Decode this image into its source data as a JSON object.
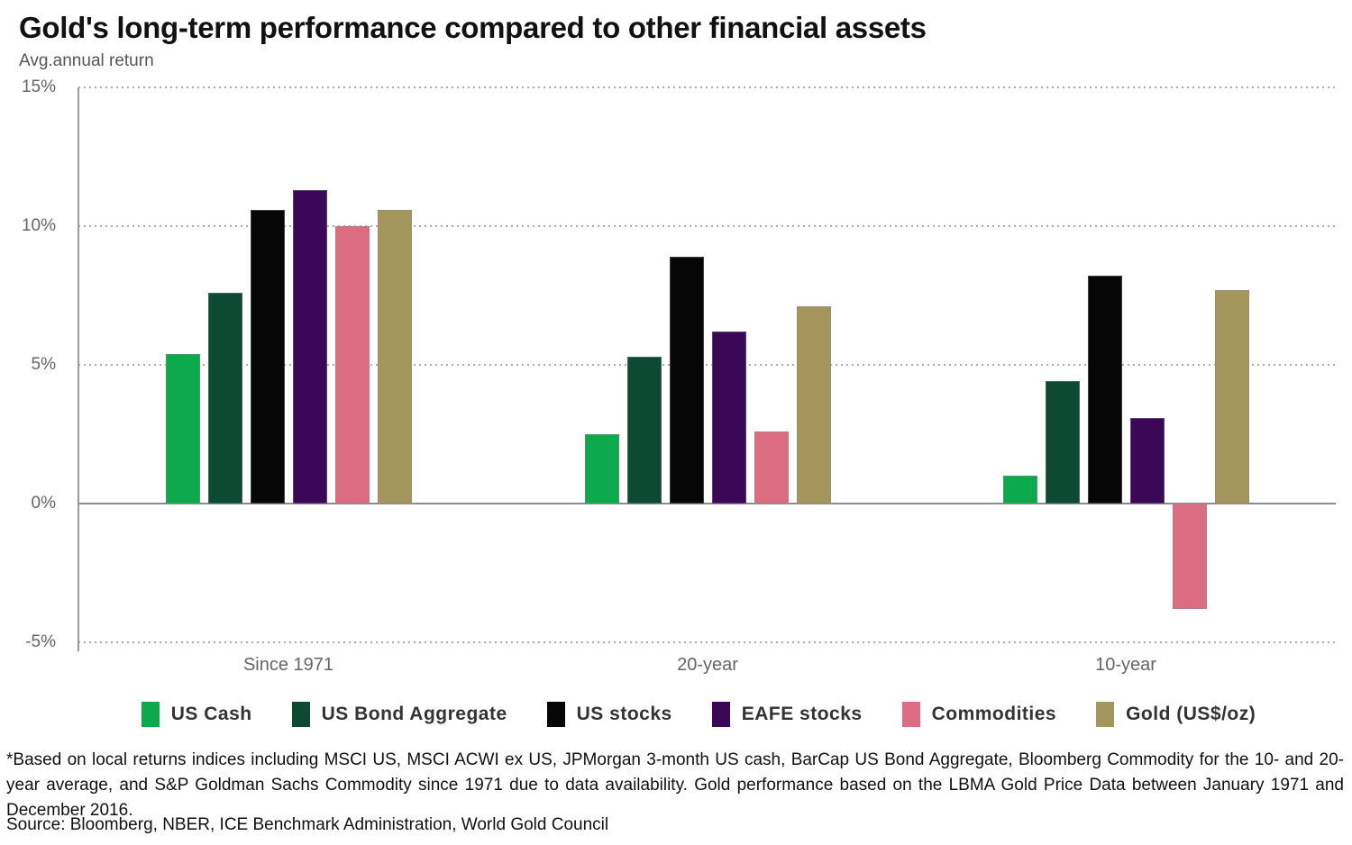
{
  "header": {
    "title": "Gold's long-term performance compared to other financial assets",
    "subtitle": "Avg.annual return"
  },
  "chart_data": {
    "type": "bar",
    "title": "Gold's long-term performance compared to other financial assets",
    "ylabel": "Avg.annual return",
    "categories": [
      "Since 1971",
      "20-year",
      "10-year"
    ],
    "series": [
      {
        "name": "US Cash",
        "color": "#0caa4c",
        "values": [
          5.4,
          2.5,
          1.0
        ]
      },
      {
        "name": "US Bond Aggregate",
        "color": "#0d4a33",
        "values": [
          7.6,
          5.3,
          4.4
        ]
      },
      {
        "name": "US stocks",
        "color": "#060606",
        "values": [
          10.6,
          8.9,
          8.2
        ]
      },
      {
        "name": "EAFE stocks",
        "color": "#3b0757",
        "values": [
          11.3,
          6.2,
          3.1
        ]
      },
      {
        "name": "Commodities",
        "color": "#db6c82",
        "values": [
          10.0,
          2.6,
          -3.8
        ]
      },
      {
        "name": "Gold (US$/oz)",
        "color": "#a4955c",
        "values": [
          10.6,
          7.1,
          7.7
        ]
      }
    ],
    "ylim": [
      -5,
      15
    ],
    "yticks": [
      {
        "value": 15,
        "label": "15%"
      },
      {
        "value": 10,
        "label": "10%"
      },
      {
        "value": 5,
        "label": "5%"
      },
      {
        "value": 0,
        "label": "0%"
      },
      {
        "value": -5,
        "label": "-5%"
      }
    ],
    "grid": "horizontal-dotted",
    "legend_position": "bottom"
  },
  "footnote": "*Based on local returns indices including MSCI US, MSCI ACWI ex US, JPMorgan 3-month US cash, BarCap US Bond Aggregate, Bloomberg Commodity for the 10- and 20-year average, and S&P Goldman Sachs Commodity since 1971 due to data availability. Gold performance based on the LBMA Gold Price Data between January 1971 and December 2016.",
  "source": "Source: Bloomberg, NBER, ICE Benchmark Administration, World Gold Council"
}
